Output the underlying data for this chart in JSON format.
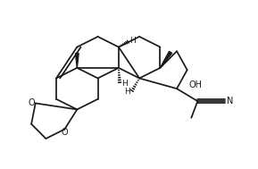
{
  "bg_color": "#ffffff",
  "line_color": "#1a1a1a",
  "line_width": 1.25,
  "figsize": [
    2.89,
    1.89
  ],
  "dpi": 100,
  "xlim": [
    -0.5,
    10.5
  ],
  "ylim": [
    0.5,
    8.5
  ]
}
